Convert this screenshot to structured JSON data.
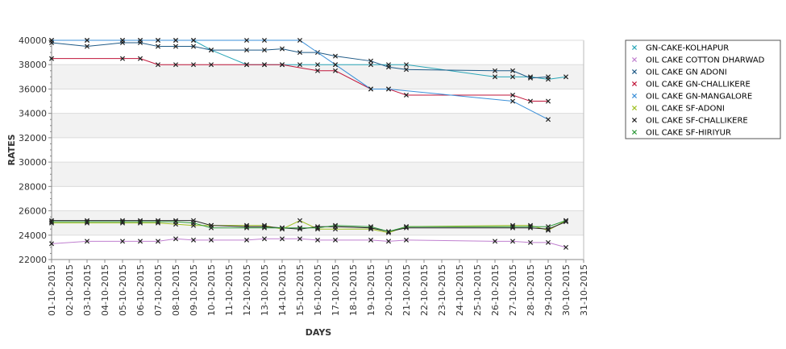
{
  "chart_data": {
    "type": "line",
    "xlabel": "DAYS",
    "ylabel": "RATES",
    "ylim": [
      22000,
      40000
    ],
    "yticks": [
      22000,
      24000,
      26000,
      28000,
      30000,
      32000,
      34000,
      36000,
      38000,
      40000
    ],
    "x": [
      "01-10-2015",
      "02-10-2015",
      "03-10-2015",
      "04-10-2015",
      "05-10-2015",
      "06-10-2015",
      "07-10-2015",
      "08-10-2015",
      "09-10-2015",
      "10-10-2015",
      "11-10-2015",
      "12-10-2015",
      "13-10-2015",
      "14-10-2015",
      "15-10-2015",
      "16-10-2015",
      "17-10-2015",
      "18-10-2015",
      "19-10-2015",
      "20-10-2015",
      "21-10-2015",
      "22-10-2015",
      "23-10-2015",
      "24-10-2015",
      "25-10-2015",
      "26-10-2015",
      "27-10-2015",
      "28-10-2015",
      "29-10-2015",
      "30-10-2015",
      "31-10-2015"
    ],
    "grid": true,
    "legend_position": "right",
    "series": [
      {
        "name": "GN-CAKE-KOLHAPUR",
        "color": "#2aa7b8",
        "points": [
          [
            1,
            40000
          ],
          [
            3,
            40000
          ],
          [
            5,
            40000
          ],
          [
            6,
            40000
          ],
          [
            7,
            40000
          ],
          [
            8,
            40000
          ],
          [
            9,
            40000
          ],
          [
            10,
            39200
          ],
          [
            12,
            38000
          ],
          [
            13,
            38000
          ],
          [
            14,
            38000
          ],
          [
            15,
            38000
          ],
          [
            16,
            38000
          ],
          [
            17,
            38000
          ],
          [
            19,
            38000
          ],
          [
            20,
            38000
          ],
          [
            21,
            38000
          ],
          [
            26,
            37000
          ],
          [
            27,
            37000
          ],
          [
            28,
            37000
          ],
          [
            29,
            36800
          ],
          [
            30,
            37000
          ]
        ]
      },
      {
        "name": "OIL CAKE COTTON DHARWAD",
        "color": "#c080d0",
        "points": [
          [
            1,
            23300
          ],
          [
            3,
            23500
          ],
          [
            5,
            23500
          ],
          [
            6,
            23500
          ],
          [
            7,
            23500
          ],
          [
            8,
            23700
          ],
          [
            9,
            23600
          ],
          [
            10,
            23600
          ],
          [
            12,
            23600
          ],
          [
            13,
            23700
          ],
          [
            14,
            23700
          ],
          [
            15,
            23700
          ],
          [
            16,
            23600
          ],
          [
            17,
            23600
          ],
          [
            19,
            23600
          ],
          [
            20,
            23500
          ],
          [
            21,
            23600
          ],
          [
            26,
            23500
          ],
          [
            27,
            23500
          ],
          [
            28,
            23400
          ],
          [
            29,
            23400
          ],
          [
            30,
            23000
          ]
        ]
      },
      {
        "name": "OIL CAKE GN ADONI",
        "color": "#1f5a86",
        "points": [
          [
            1,
            39800
          ],
          [
            3,
            39500
          ],
          [
            5,
            39800
          ],
          [
            6,
            39800
          ],
          [
            7,
            39500
          ],
          [
            8,
            39500
          ],
          [
            9,
            39500
          ],
          [
            10,
            39200
          ],
          [
            12,
            39200
          ],
          [
            13,
            39200
          ],
          [
            14,
            39300
          ],
          [
            15,
            39000
          ],
          [
            16,
            39000
          ],
          [
            17,
            38700
          ],
          [
            19,
            38300
          ],
          [
            20,
            37800
          ],
          [
            21,
            37600
          ],
          [
            26,
            37500
          ],
          [
            27,
            37500
          ],
          [
            28,
            36900
          ],
          [
            29,
            37000
          ]
        ]
      },
      {
        "name": "OIL CAKE GN-CHALLIKERE",
        "color": "#c0163a",
        "points": [
          [
            1,
            38500
          ],
          [
            5,
            38500
          ],
          [
            6,
            38500
          ],
          [
            7,
            38000
          ],
          [
            8,
            38000
          ],
          [
            9,
            38000
          ],
          [
            10,
            38000
          ],
          [
            12,
            38000
          ],
          [
            13,
            38000
          ],
          [
            14,
            38000
          ],
          [
            16,
            37500
          ],
          [
            17,
            37500
          ],
          [
            19,
            36000
          ],
          [
            20,
            36000
          ],
          [
            21,
            35500
          ],
          [
            27,
            35500
          ],
          [
            28,
            35000
          ],
          [
            29,
            35000
          ]
        ]
      },
      {
        "name": "OIL CAKE GN-MANGALORE",
        "color": "#3a8fd8",
        "points": [
          [
            1,
            40000
          ],
          [
            3,
            40000
          ],
          [
            5,
            40000
          ],
          [
            6,
            40000
          ],
          [
            7,
            40000
          ],
          [
            8,
            40000
          ],
          [
            9,
            40000
          ],
          [
            12,
            40000
          ],
          [
            13,
            40000
          ],
          [
            15,
            40000
          ],
          [
            17,
            38000
          ],
          [
            19,
            36000
          ],
          [
            20,
            36000
          ],
          [
            27,
            35000
          ],
          [
            29,
            33500
          ]
        ]
      },
      {
        "name": "OIL CAKE SF-ADONI",
        "color": "#a0c020",
        "points": [
          [
            1,
            25000
          ],
          [
            3,
            25000
          ],
          [
            5,
            25000
          ],
          [
            6,
            25000
          ],
          [
            7,
            25000
          ],
          [
            8,
            24900
          ],
          [
            9,
            24800
          ],
          [
            10,
            24800
          ],
          [
            12,
            24800
          ],
          [
            13,
            24800
          ],
          [
            14,
            24500
          ],
          [
            15,
            25200
          ],
          [
            16,
            24500
          ],
          [
            17,
            24500
          ],
          [
            19,
            24500
          ],
          [
            20,
            24200
          ],
          [
            21,
            24700
          ],
          [
            27,
            24800
          ],
          [
            28,
            24800
          ],
          [
            29,
            24400
          ],
          [
            30,
            25200
          ]
        ]
      },
      {
        "name": "OIL CAKE SF-CHALLIKERE",
        "color": "#222222",
        "points": [
          [
            1,
            25200
          ],
          [
            3,
            25200
          ],
          [
            5,
            25200
          ],
          [
            6,
            25200
          ],
          [
            7,
            25200
          ],
          [
            8,
            25200
          ],
          [
            9,
            25200
          ],
          [
            10,
            24800
          ],
          [
            12,
            24700
          ],
          [
            13,
            24700
          ],
          [
            14,
            24600
          ],
          [
            15,
            24500
          ],
          [
            16,
            24700
          ],
          [
            17,
            24700
          ],
          [
            19,
            24600
          ],
          [
            20,
            24300
          ],
          [
            21,
            24600
          ],
          [
            27,
            24600
          ],
          [
            28,
            24600
          ],
          [
            29,
            24500
          ],
          [
            30,
            25100
          ]
        ]
      },
      {
        "name": "OIL CAKE SF-HIRIYUR",
        "color": "#2f9a3a",
        "points": [
          [
            1,
            25100
          ],
          [
            3,
            25100
          ],
          [
            5,
            25100
          ],
          [
            6,
            25100
          ],
          [
            7,
            25100
          ],
          [
            8,
            25100
          ],
          [
            9,
            25000
          ],
          [
            10,
            24600
          ],
          [
            12,
            24600
          ],
          [
            13,
            24600
          ],
          [
            14,
            24600
          ],
          [
            15,
            24600
          ],
          [
            16,
            24600
          ],
          [
            17,
            24800
          ],
          [
            19,
            24700
          ],
          [
            20,
            24300
          ],
          [
            21,
            24700
          ],
          [
            27,
            24700
          ],
          [
            28,
            24700
          ],
          [
            29,
            24700
          ],
          [
            30,
            25200
          ]
        ]
      }
    ]
  }
}
